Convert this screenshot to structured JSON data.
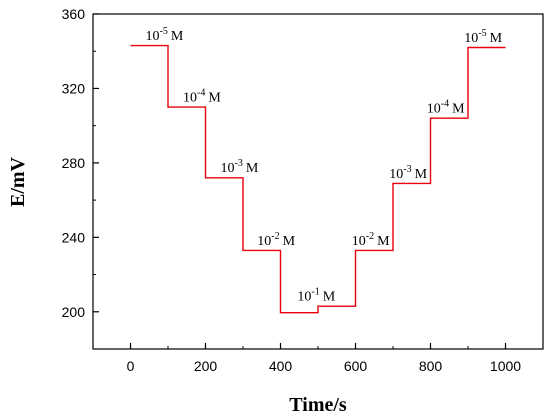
{
  "chart_data": {
    "type": "line",
    "xlabel": "Time/s",
    "ylabel": "E/mV",
    "xlim": [
      -100,
      1100
    ],
    "ylim": [
      180,
      360
    ],
    "xticks": [
      0,
      200,
      400,
      600,
      800,
      1000
    ],
    "yticks": [
      200,
      240,
      280,
      320,
      360
    ],
    "grid": false,
    "line_color": "#e8000b",
    "series": [
      {
        "x": [
          0,
          100,
          100,
          200,
          200,
          300,
          300,
          400,
          400,
          500,
          500,
          600,
          600,
          700,
          700,
          800,
          800,
          900,
          900,
          1000
        ],
        "y": [
          343,
          343,
          310,
          310,
          272,
          272,
          233,
          233,
          199.5,
          199.5,
          203,
          203,
          233,
          233,
          269,
          269,
          304,
          304,
          342,
          342
        ]
      }
    ],
    "annotations": [
      {
        "base": "10",
        "exp": "-5",
        "unit": "M",
        "x": 40,
        "y": 346
      },
      {
        "base": "10",
        "exp": "-4",
        "unit": "M",
        "x": 140,
        "y": 313
      },
      {
        "base": "10",
        "exp": "-3",
        "unit": "M",
        "x": 240,
        "y": 275
      },
      {
        "base": "10",
        "exp": "-2",
        "unit": "M",
        "x": 338,
        "y": 236
      },
      {
        "base": "10",
        "exp": "-1",
        "unit": "M",
        "x": 445,
        "y": 206
      },
      {
        "base": "10",
        "exp": "-2",
        "unit": "M",
        "x": 590,
        "y": 236
      },
      {
        "base": "10",
        "exp": "-3",
        "unit": "M",
        "x": 690,
        "y": 272
      },
      {
        "base": "10",
        "exp": "-4",
        "unit": "M",
        "x": 790,
        "y": 307
      },
      {
        "base": "10",
        "exp": "-5",
        "unit": "M",
        "x": 890,
        "y": 345
      }
    ]
  }
}
